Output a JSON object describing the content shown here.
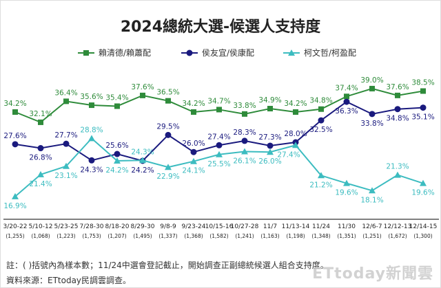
{
  "chart_data": {
    "type": "line",
    "title": "2024總統大選-候選人支持度",
    "categories": [
      "3/20-22",
      "5/10-12",
      "5/23-25",
      "7/28-30",
      "8/18-20",
      "8/29-30",
      "9/8-9",
      "9/23-24",
      "10/15-16",
      "10/27-28",
      "11/7",
      "11/13-14",
      "11/24",
      "11/30",
      "12/6-7",
      "12/12-13",
      "12/14-15"
    ],
    "sample_sizes": [
      "(1,255)",
      "(1,068)",
      "(1,223)",
      "(1,753)",
      "(1,207)",
      "(1,495)",
      "(1,337)",
      "(1,368)",
      "(1,582)",
      "(1,241)",
      "(1,163)",
      "(1,198)",
      "(1,348)",
      "(1,351)",
      "(1,251)",
      "(1,672)",
      "(1,300)"
    ],
    "series": [
      {
        "name": "賴清德/賴蕭配",
        "color": "#2e8b3a",
        "marker": "square",
        "values": [
          34.2,
          32.1,
          36.4,
          35.6,
          35.4,
          37.6,
          36.5,
          34.2,
          34.7,
          33.8,
          34.9,
          34.2,
          34.8,
          37.4,
          39.0,
          37.6,
          38.5
        ]
      },
      {
        "name": "侯友宜/侯康配",
        "color": "#1a1a7e",
        "marker": "circle",
        "values": [
          27.6,
          26.8,
          27.7,
          24.3,
          25.6,
          24.2,
          29.5,
          26.0,
          27.4,
          28.3,
          27.3,
          28.0,
          32.5,
          36.3,
          33.8,
          34.8,
          35.1
        ]
      },
      {
        "name": "柯文哲/柯盈配",
        "color": "#3cbcc0",
        "marker": "triangle",
        "values": [
          16.9,
          21.4,
          23.1,
          28.8,
          24.2,
          24.3,
          22.9,
          24.1,
          25.5,
          26.1,
          26.0,
          27.4,
          21.2,
          19.6,
          18.1,
          21.3,
          19.6
        ]
      }
    ],
    "unit": "%",
    "legend": "top",
    "grid": false
  },
  "notes": {
    "note": "註：( )括號內為樣本數；11/24中選會登記截止，開始調查正副總統候選人組合支持度。",
    "source": "資料來源：ETtoday民調雲調查。"
  },
  "logo": "ETtoday新聞雲"
}
